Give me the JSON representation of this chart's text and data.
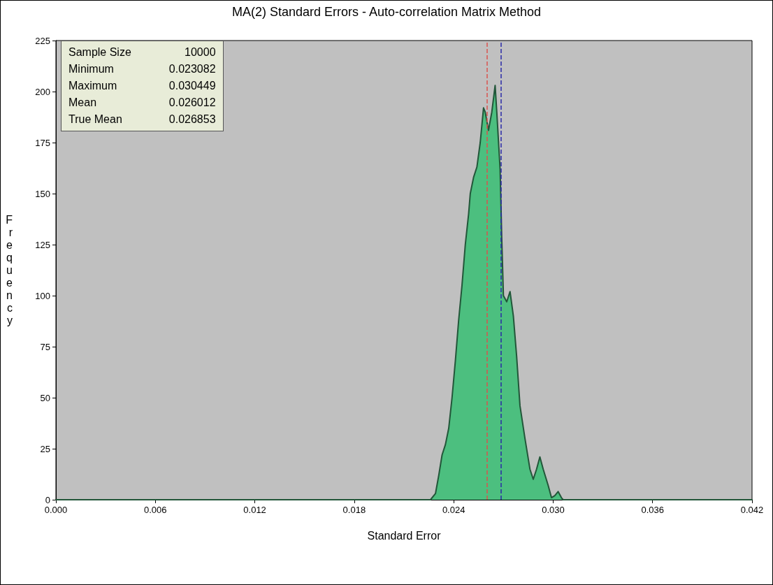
{
  "chart_data": {
    "type": "area",
    "title": "MA(2) Standard Errors - Auto-correlation Matrix Method",
    "xlabel": "Standard Error",
    "ylabel": "Frequency",
    "x": [
      0,
      0.0226,
      0.0229,
      0.0231,
      0.0233,
      0.0235,
      0.0237,
      0.0239,
      0.0241,
      0.0243,
      0.0245,
      0.0247,
      0.0249,
      0.025,
      0.0252,
      0.0254,
      0.0256,
      0.0258,
      0.0259,
      0.0261,
      0.0263,
      0.0265,
      0.0266,
      0.0268,
      0.0269,
      0.027,
      0.0272,
      0.0274,
      0.0276,
      0.0278,
      0.028,
      0.0283,
      0.0286,
      0.0288,
      0.029,
      0.0292,
      0.0294,
      0.0297,
      0.0299,
      0.0301,
      0.0303,
      0.0305,
      0.0306,
      0.042
    ],
    "series": [
      {
        "color": "#4cbf7f",
        "values": [
          0,
          0,
          3,
          12,
          22,
          27,
          35,
          50,
          68,
          88,
          105,
          125,
          140,
          150,
          158,
          163,
          175,
          192,
          190,
          181,
          190,
          203,
          190,
          162,
          128,
          100,
          97,
          102,
          90,
          70,
          46,
          30,
          15,
          10,
          15,
          21,
          15,
          7,
          1,
          2,
          4,
          1,
          0,
          0
        ]
      }
    ],
    "xlim": [
      0,
      0.042
    ],
    "xticks": [
      {
        "value": 0,
        "label": "0.000"
      },
      {
        "value": 0.006,
        "label": "0.006"
      },
      {
        "value": 0.012,
        "label": "0.012"
      },
      {
        "value": 0.018,
        "label": "0.018"
      },
      {
        "value": 0.024,
        "label": "0.024"
      },
      {
        "value": 0.03,
        "label": "0.030"
      },
      {
        "value": 0.036,
        "label": "0.036"
      },
      {
        "value": 0.042,
        "label": "0.042"
      }
    ],
    "ylim": [
      0,
      225
    ],
    "yticks": [
      0,
      25,
      50,
      75,
      100,
      125,
      150,
      175,
      200,
      225
    ],
    "ref_lines": [
      {
        "axis": "x",
        "value": 0.026012,
        "color": "#d9534f",
        "line_style": "dashed"
      },
      {
        "axis": "x",
        "value": 0.026853,
        "color": "#2a2aa8",
        "line_style": "dashed"
      }
    ],
    "annotations": [
      "Sample Size",
      "10000",
      "Minimum",
      "0.023082",
      "Maximum",
      "0.030449",
      "Mean",
      "0.026012",
      "True Mean",
      "0.026853"
    ],
    "grid": false,
    "marker": "none",
    "line_style": "solid"
  }
}
